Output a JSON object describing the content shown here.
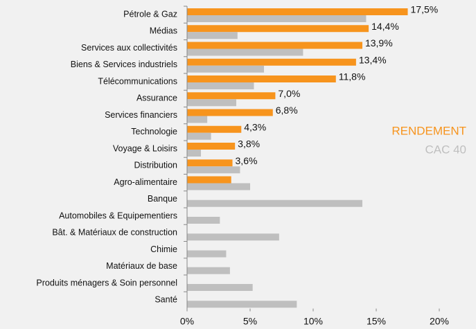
{
  "chart_data": {
    "type": "bar",
    "orientation": "horizontal",
    "categories": [
      "Pétrole & Gaz",
      "Médias",
      "Services aux collectivités",
      "Biens & Services industriels",
      "Télécommunications",
      "Assurance",
      "Services financiers",
      "Technologie",
      "Voyage & Loisirs",
      "Distribution",
      "Agro-alimentaire",
      "Banque",
      "Automobiles & Equipementiers",
      "Bât. & Matériaux de construction",
      "Chimie",
      "Matériaux de base",
      "Produits ménagers & Soin personnel",
      "Santé"
    ],
    "series": [
      {
        "name": "RENDEMENT",
        "color": "#f7941d",
        "values": [
          17.5,
          14.4,
          13.9,
          13.4,
          11.8,
          7.0,
          6.8,
          4.3,
          3.8,
          3.6,
          3.5,
          null,
          null,
          null,
          null,
          null,
          null,
          null
        ],
        "value_labels": [
          "17,5%",
          "14,4%",
          "13,9%",
          "13,4%",
          "11,8%",
          "7,0%",
          "6,8%",
          "4,3%",
          "3,8%",
          "3,6%",
          null,
          null,
          null,
          null,
          null,
          null,
          null,
          null
        ]
      },
      {
        "name": "CAC 40",
        "color": "#bfbfbf",
        "values": [
          14.2,
          4.0,
          9.2,
          6.1,
          5.3,
          3.9,
          1.6,
          1.9,
          1.1,
          4.2,
          5.0,
          13.9,
          2.6,
          7.3,
          3.1,
          3.4,
          5.2,
          8.7
        ]
      }
    ],
    "xlim": [
      0,
      20
    ],
    "xticks": [
      {
        "value": 0,
        "label": "0%"
      },
      {
        "value": 5,
        "label": "5%"
      },
      {
        "value": 10,
        "label": "10%"
      },
      {
        "value": 15,
        "label": "15%"
      },
      {
        "value": 20,
        "label": "20%"
      }
    ],
    "grid": false,
    "legend": "right"
  }
}
